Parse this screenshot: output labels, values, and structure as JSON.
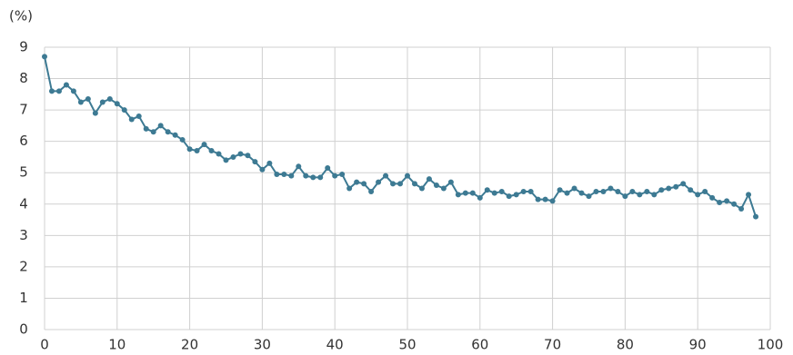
{
  "chart_data": {
    "type": "line",
    "y_unit_label": "(%)",
    "x": [
      0,
      1,
      2,
      3,
      4,
      5,
      6,
      7,
      8,
      9,
      10,
      11,
      12,
      13,
      14,
      15,
      16,
      17,
      18,
      19,
      20,
      21,
      22,
      23,
      24,
      25,
      26,
      27,
      28,
      29,
      30,
      31,
      32,
      33,
      34,
      35,
      36,
      37,
      38,
      39,
      40,
      41,
      42,
      43,
      44,
      45,
      46,
      47,
      48,
      49,
      50,
      51,
      52,
      53,
      54,
      55,
      56,
      57,
      58,
      59,
      60,
      61,
      62,
      63,
      64,
      65,
      66,
      67,
      68,
      69,
      70,
      71,
      72,
      73,
      74,
      75,
      76,
      77,
      78,
      79,
      80,
      81,
      82,
      83,
      84,
      85,
      86,
      87,
      88,
      89,
      90,
      91,
      92,
      93,
      94,
      95,
      96,
      97,
      98
    ],
    "series": [
      {
        "color": "#3d7a93",
        "values": [
          8.7,
          7.6,
          7.6,
          7.8,
          7.6,
          7.25,
          7.35,
          6.9,
          7.25,
          7.35,
          7.2,
          7.0,
          6.7,
          6.8,
          6.4,
          6.3,
          6.5,
          6.3,
          6.2,
          6.05,
          5.75,
          5.7,
          5.9,
          5.7,
          5.6,
          5.4,
          5.5,
          5.6,
          5.55,
          5.35,
          5.1,
          5.3,
          4.95,
          4.95,
          4.9,
          5.2,
          4.9,
          4.85,
          4.85,
          5.15,
          4.9,
          4.95,
          4.5,
          4.7,
          4.65,
          4.4,
          4.7,
          4.9,
          4.65,
          4.65,
          4.9,
          4.65,
          4.5,
          4.8,
          4.6,
          4.5,
          4.7,
          4.3,
          4.35,
          4.35,
          4.2,
          4.45,
          4.35,
          4.4,
          4.25,
          4.3,
          4.4,
          4.4,
          4.15,
          4.15,
          4.1,
          4.45,
          4.35,
          4.5,
          4.35,
          4.25,
          4.4,
          4.4,
          4.5,
          4.4,
          4.25,
          4.4,
          4.3,
          4.4,
          4.3,
          4.45,
          4.5,
          4.55,
          4.65,
          4.45,
          4.3,
          4.4,
          4.2,
          4.05,
          4.1,
          4.0,
          3.85,
          4.3,
          3.6
        ]
      }
    ],
    "xlim": [
      0,
      100
    ],
    "xticks": [
      0,
      10,
      20,
      30,
      40,
      50,
      60,
      70,
      80,
      90,
      100
    ],
    "ylim": [
      0,
      9
    ],
    "yticks": [
      0,
      1,
      2,
      3,
      4,
      5,
      6,
      7,
      8,
      9
    ],
    "grid": true
  }
}
